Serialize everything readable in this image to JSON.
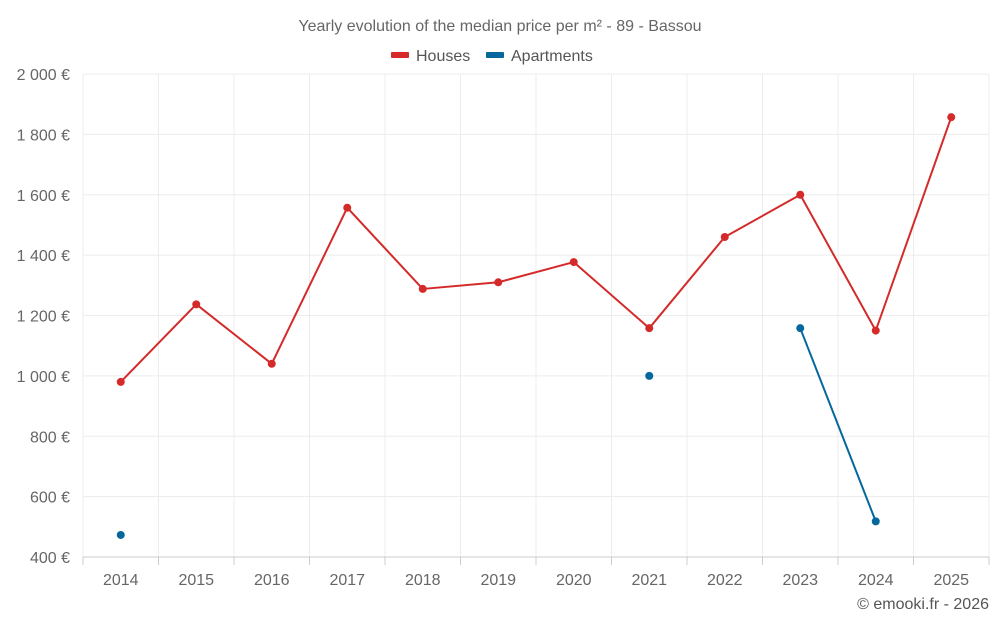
{
  "chart_data": {
    "type": "line",
    "title": "Yearly evolution of the median price per m² - 89 - Bassou",
    "x": [
      2014,
      2015,
      2016,
      2017,
      2018,
      2019,
      2020,
      2021,
      2022,
      2023,
      2024,
      2025
    ],
    "xtick_labels": [
      "2014",
      "2015",
      "2016",
      "2017",
      "2018",
      "2019",
      "2020",
      "2021",
      "2022",
      "2023",
      "2024",
      "2025"
    ],
    "ylim": [
      400,
      2000
    ],
    "yticks": [
      400,
      600,
      800,
      1000,
      1200,
      1400,
      1600,
      1800,
      2000
    ],
    "ytick_labels": [
      "400 €",
      "600 €",
      "800 €",
      "1 000 €",
      "1 200 €",
      "1 400 €",
      "1 600 €",
      "1 800 €",
      "2 000 €"
    ],
    "grid": true,
    "legend_position": "top-center",
    "series": [
      {
        "name": "Houses",
        "color": "#d42a2a",
        "values": [
          980,
          1237,
          1040,
          1557,
          1288,
          1310,
          1377,
          1158,
          1460,
          1600,
          1150,
          1857
        ]
      },
      {
        "name": "Apartments",
        "color": "#05689c",
        "values": [
          473,
          null,
          null,
          null,
          null,
          null,
          null,
          1000,
          null,
          1158,
          518,
          null
        ]
      }
    ],
    "credit": "© emooki.fr - 2026"
  }
}
